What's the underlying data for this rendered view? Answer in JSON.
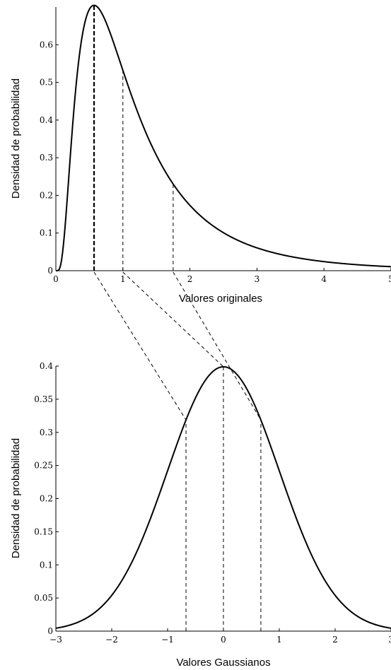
{
  "chart_data": [
    {
      "type": "line",
      "title": "",
      "xlabel": "Valores originales",
      "ylabel": "Densidad de probabilidad",
      "xlim": [
        0,
        5
      ],
      "ylim": [
        0,
        0.7
      ],
      "xticks": [
        "0",
        "1",
        "2",
        "3",
        "4",
        "5"
      ],
      "yticks": [
        "0",
        "0.1",
        "0.2",
        "0.3",
        "0.4",
        "0.5",
        "0.6"
      ],
      "distribution": "lognormal",
      "sigma": 0.75,
      "median": 1.0,
      "series": [
        {
          "x": [
            0.05,
            0.1,
            0.2,
            0.3,
            0.4,
            0.5,
            0.57,
            0.7,
            0.8,
            1.0,
            1.2,
            1.5,
            1.75,
            2.0,
            2.5,
            3.0,
            3.5,
            4.0,
            4.5,
            5.0
          ],
          "values": [
            0.0,
            0.007,
            0.13,
            0.36,
            0.56,
            0.67,
            0.69,
            0.65,
            0.61,
            0.53,
            0.44,
            0.33,
            0.26,
            0.2,
            0.13,
            0.085,
            0.056,
            0.038,
            0.027,
            0.019
          ]
        }
      ],
      "guide_lines_x": [
        0.57,
        1.0,
        1.75
      ],
      "grid": false
    },
    {
      "type": "line",
      "title": "",
      "xlabel": "Valores Gaussianos",
      "ylabel": "Densidad de probabilidad",
      "xlim": [
        -3,
        3
      ],
      "ylim": [
        0,
        0.4
      ],
      "xticks": [
        "−3",
        "−2",
        "−1",
        "0",
        "1",
        "2",
        "3"
      ],
      "yticks": [
        "0",
        "0.05",
        "0.1",
        "0.15",
        "0.2",
        "0.25",
        "0.3",
        "0.35",
        "0.4"
      ],
      "distribution": "standard normal",
      "series": [
        {
          "x": [
            -3,
            -2.5,
            -2,
            -1.5,
            -1,
            -0.67,
            -0.5,
            0,
            0.5,
            0.67,
            1,
            1.5,
            2,
            2.5,
            3
          ],
          "values": [
            0.0044,
            0.0175,
            0.054,
            0.1295,
            0.242,
            0.319,
            0.352,
            0.399,
            0.352,
            0.319,
            0.242,
            0.1295,
            0.054,
            0.0175,
            0.0044
          ]
        }
      ],
      "guide_lines_x": [
        -0.67,
        0,
        0.67
      ],
      "grid": false
    }
  ]
}
